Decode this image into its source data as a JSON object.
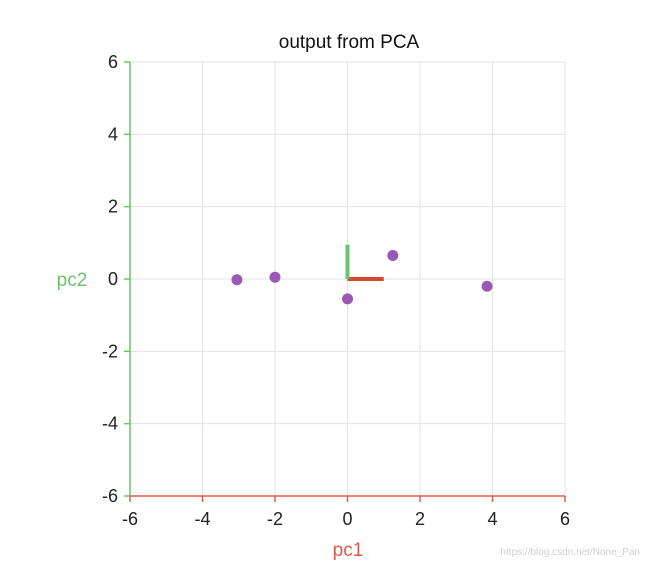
{
  "chart_data": {
    "type": "scatter",
    "title": "output from PCA",
    "xlabel": "pc1",
    "ylabel": "pc2",
    "xlim": [
      -6,
      6
    ],
    "ylim": [
      -6,
      6
    ],
    "xticks": [
      "-6",
      "-4",
      "-2",
      "0",
      "2",
      "4",
      "6"
    ],
    "yticks": [
      "-6",
      "-4",
      "-2",
      "0",
      "2",
      "4",
      "6"
    ],
    "xtick_values": [
      -6,
      -4,
      -2,
      0,
      2,
      4,
      6
    ],
    "ytick_values": [
      -6,
      -4,
      -2,
      0,
      2,
      4,
      6
    ],
    "grid": true,
    "points": [
      {
        "x": -3.05,
        "y": -0.02
      },
      {
        "x": -2.0,
        "y": 0.05
      },
      {
        "x": 0.0,
        "y": -0.55
      },
      {
        "x": 1.25,
        "y": 0.65
      },
      {
        "x": 3.85,
        "y": -0.2
      }
    ],
    "component_vectors": [
      {
        "x0": 0,
        "y0": 0,
        "x1": 1.0,
        "y1": 0.0
      },
      {
        "x0": 0,
        "y0": 0,
        "x1": 0.0,
        "y1": 0.95
      }
    ],
    "colors": {
      "points": "#9b59b6",
      "x_axis": "#e05a4a",
      "y_axis": "#6cc36c",
      "vector_pc1": "#d14a35",
      "vector_pc2": "#6cc36c",
      "grid": "#e3e3e3"
    }
  },
  "watermark": "https://blog.csdn.net/None_Pan"
}
